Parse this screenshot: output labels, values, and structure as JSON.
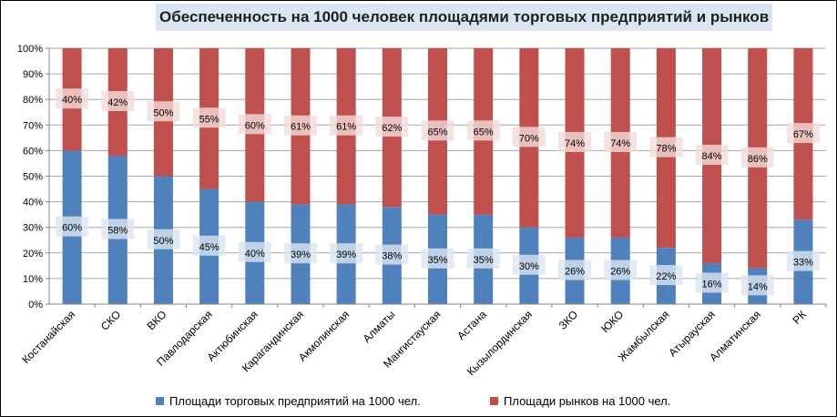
{
  "chart_data": {
    "type": "bar",
    "stacked": "percent",
    "title": "Обеспеченность на 1000 человек площадями  торговых предприятий и рынков",
    "categories": [
      "Костанайская",
      "СКО",
      "ВКО",
      "Павлодарская",
      "Актюбинская",
      "Карагандинская",
      "Акмолинская",
      "Алматы",
      "Мангистауская",
      "Астана",
      "Кызылординская",
      "ЗКО",
      "ЮКО",
      "Жамбылская",
      "Атырауская",
      "Алматинская",
      "РК"
    ],
    "series": [
      {
        "name": "Площади торговых предприятий на 1000 чел.",
        "color": "#4f81bd",
        "values": [
          60,
          58,
          50,
          45,
          40,
          39,
          39,
          38,
          35,
          35,
          30,
          26,
          26,
          22,
          16,
          14,
          33
        ],
        "labels": [
          "60%",
          "58%",
          "50%",
          "45%",
          "40%",
          "39%",
          "39%",
          "38%",
          "35%",
          "35%",
          "30%",
          "26%",
          "26%",
          "22%",
          "16%",
          "14%",
          "33%"
        ]
      },
      {
        "name": "Площади рынков на 1000 чел.",
        "color": "#c0504d",
        "values": [
          40,
          42,
          50,
          55,
          60,
          61,
          61,
          62,
          65,
          65,
          70,
          74,
          74,
          78,
          84,
          86,
          67
        ],
        "labels": [
          "40%",
          "42%",
          "50%",
          "55%",
          "60%",
          "61%",
          "61%",
          "62%",
          "65%",
          "65%",
          "70%",
          "74%",
          "74%",
          "78%",
          "84%",
          "86%",
          "67%"
        ]
      }
    ],
    "yticks": [
      "0%",
      "10%",
      "20%",
      "30%",
      "40%",
      "50%",
      "60%",
      "70%",
      "80%",
      "90%",
      "100%"
    ],
    "ylim": [
      0,
      100
    ],
    "grid": true,
    "legend_position": "bottom"
  }
}
